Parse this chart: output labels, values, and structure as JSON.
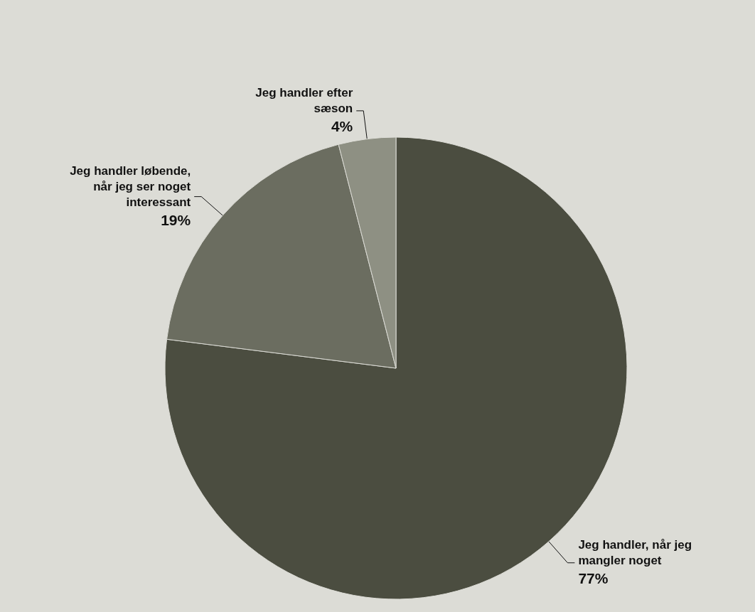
{
  "chart_data": {
    "type": "pie",
    "categories": [
      "Jeg handler, når jeg mangler noget",
      "Jeg handler løbende, når jeg ser noget interessant",
      "Jeg handler efter sæson"
    ],
    "values": [
      77,
      19,
      4
    ],
    "colors": [
      "#4b4d40",
      "#6b6d60",
      "#8e9083"
    ],
    "value_labels": [
      "77%",
      "19%",
      "4%"
    ]
  }
}
